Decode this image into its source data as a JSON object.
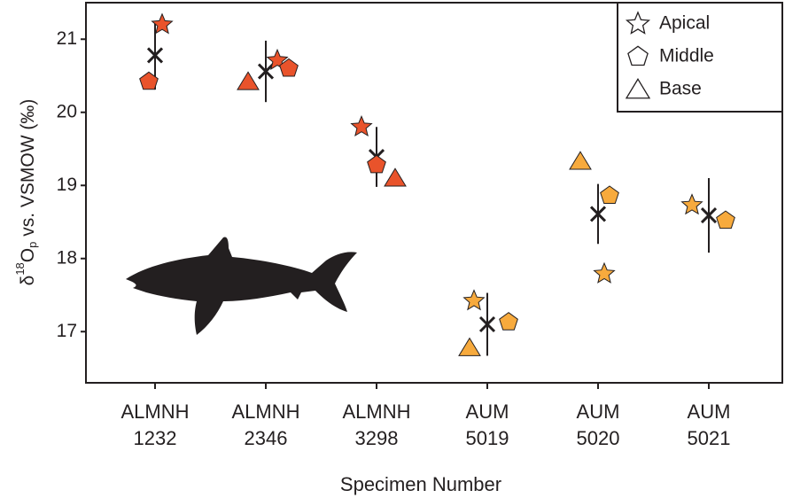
{
  "chart_data": {
    "type": "scatter",
    "x_label": "Specimen Number",
    "y_label": {
      "prefix": "δ",
      "sup": "18",
      "main": "O",
      "sub": "p",
      "suffix": " vs. VSMOW (‰)"
    },
    "categories": [
      [
        "ALMNH",
        "1232"
      ],
      [
        "ALMNH",
        "2346"
      ],
      [
        "ALMNH",
        "3298"
      ],
      [
        "AUM",
        "5019"
      ],
      [
        "AUM",
        "5020"
      ],
      [
        "AUM",
        "5021"
      ]
    ],
    "category_colors": [
      "#e9532b",
      "#e9532b",
      "#e9532b",
      "#f7aa3d",
      "#f7aa3d",
      "#f7aa3d"
    ],
    "series": [
      {
        "name": "Apical",
        "marker": "star",
        "values": [
          21.2,
          20.71,
          19.8,
          17.42,
          17.79,
          18.73
        ]
      },
      {
        "name": "Middle",
        "marker": "pentagon",
        "values": [
          20.42,
          20.6,
          19.28,
          17.13,
          18.86,
          18.52
        ]
      },
      {
        "name": "Base",
        "marker": "triangle",
        "values": [
          null,
          20.42,
          19.1,
          16.78,
          19.33,
          null
        ]
      }
    ],
    "mean": {
      "values": [
        20.78,
        20.56,
        19.39,
        17.1,
        18.61,
        18.59
      ],
      "errors": [
        0.47,
        0.42,
        0.41,
        0.43,
        0.41,
        0.51
      ]
    },
    "ylim": [
      16.3,
      21.5
    ],
    "yticks": [
      17,
      18,
      19,
      20,
      21
    ],
    "legend": "upper right"
  }
}
